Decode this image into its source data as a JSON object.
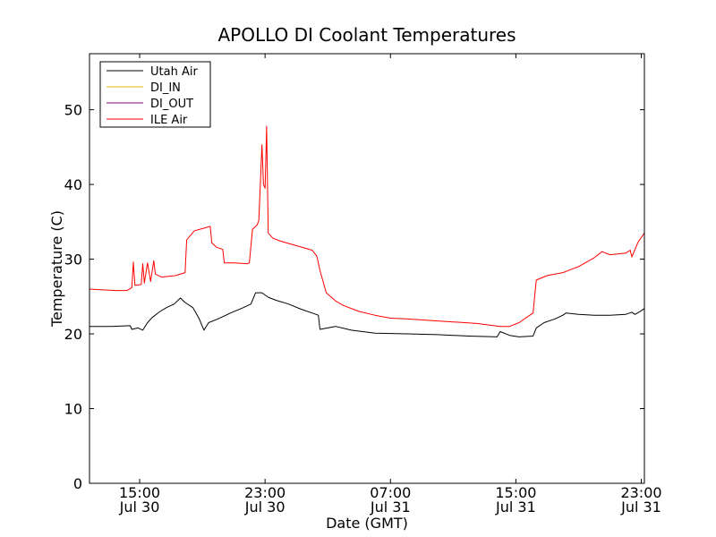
{
  "chart_data": {
    "type": "line",
    "title": "APOLLO DI Coolant Temperatures",
    "xlabel": "Date (GMT)",
    "ylabel": "Temperature (C)",
    "xlim_hours": [
      11.8,
      47.2
    ],
    "ylim": [
      0,
      57.5
    ],
    "grid": false,
    "legend_position": "top-left",
    "x_ticks": [
      {
        "hour": 15,
        "time": "15:00",
        "date": "Jul 30"
      },
      {
        "hour": 23,
        "time": "23:00",
        "date": "Jul 30"
      },
      {
        "hour": 31,
        "time": "07:00",
        "date": "Jul 31"
      },
      {
        "hour": 39,
        "time": "15:00",
        "date": "Jul 31"
      },
      {
        "hour": 47,
        "time": "23:00",
        "date": "Jul 31"
      }
    ],
    "y_ticks": [
      0,
      10,
      20,
      30,
      40,
      50
    ],
    "series": [
      {
        "name": "Utah Air",
        "color": "#000000",
        "points": [
          [
            11.8,
            21.0
          ],
          [
            13.2,
            21.0
          ],
          [
            14.4,
            21.1
          ],
          [
            14.5,
            20.6
          ],
          [
            14.9,
            20.8
          ],
          [
            15.2,
            20.5
          ],
          [
            15.5,
            21.5
          ],
          [
            15.8,
            22.2
          ],
          [
            16.3,
            23.0
          ],
          [
            16.7,
            23.5
          ],
          [
            17.2,
            24.0
          ],
          [
            17.6,
            24.8
          ],
          [
            17.9,
            24.2
          ],
          [
            18.4,
            23.5
          ],
          [
            18.8,
            22.0
          ],
          [
            19.1,
            20.5
          ],
          [
            19.4,
            21.5
          ],
          [
            20.0,
            22.0
          ],
          [
            20.8,
            22.8
          ],
          [
            21.6,
            23.5
          ],
          [
            22.1,
            24.0
          ],
          [
            22.4,
            25.5
          ],
          [
            22.8,
            25.5
          ],
          [
            23.2,
            24.9
          ],
          [
            23.7,
            24.5
          ],
          [
            24.5,
            24.0
          ],
          [
            25.3,
            23.3
          ],
          [
            26.0,
            22.8
          ],
          [
            26.4,
            22.5
          ],
          [
            26.5,
            20.6
          ],
          [
            27.0,
            20.8
          ],
          [
            27.5,
            21.0
          ],
          [
            28.5,
            20.5
          ],
          [
            30.0,
            20.1
          ],
          [
            32.0,
            20.0
          ],
          [
            34.0,
            19.9
          ],
          [
            36.0,
            19.7
          ],
          [
            37.8,
            19.6
          ],
          [
            38.0,
            20.3
          ],
          [
            38.6,
            19.8
          ],
          [
            39.2,
            19.6
          ],
          [
            40.1,
            19.7
          ],
          [
            40.3,
            20.8
          ],
          [
            40.8,
            21.5
          ],
          [
            41.5,
            22.0
          ],
          [
            42.0,
            22.5
          ],
          [
            42.2,
            22.8
          ],
          [
            43.0,
            22.6
          ],
          [
            44.0,
            22.5
          ],
          [
            45.0,
            22.5
          ],
          [
            46.0,
            22.6
          ],
          [
            46.4,
            22.9
          ],
          [
            46.6,
            22.6
          ],
          [
            47.0,
            23.1
          ],
          [
            47.2,
            23.4
          ]
        ]
      },
      {
        "name": "DI_IN",
        "color": "#e8b400",
        "points": []
      },
      {
        "name": "DI_OUT",
        "color": "#800080",
        "points": []
      },
      {
        "name": "ILE Air",
        "color": "#ff0000",
        "points": [
          [
            11.8,
            26.0
          ],
          [
            12.5,
            25.9
          ],
          [
            13.5,
            25.8
          ],
          [
            14.2,
            25.8
          ],
          [
            14.5,
            26.2
          ],
          [
            14.6,
            29.6
          ],
          [
            14.7,
            26.5
          ],
          [
            15.1,
            26.6
          ],
          [
            15.2,
            29.4
          ],
          [
            15.3,
            26.8
          ],
          [
            15.5,
            29.5
          ],
          [
            15.7,
            27.0
          ],
          [
            15.9,
            29.8
          ],
          [
            16.0,
            28.0
          ],
          [
            16.4,
            27.6
          ],
          [
            17.3,
            27.8
          ],
          [
            17.9,
            28.2
          ],
          [
            18.0,
            32.6
          ],
          [
            18.5,
            33.8
          ],
          [
            19.2,
            34.2
          ],
          [
            19.5,
            34.4
          ],
          [
            19.6,
            32.2
          ],
          [
            19.9,
            31.6
          ],
          [
            20.3,
            31.3
          ],
          [
            20.4,
            29.5
          ],
          [
            21.0,
            29.5
          ],
          [
            21.9,
            29.4
          ],
          [
            22.0,
            29.5
          ],
          [
            22.2,
            34.0
          ],
          [
            22.5,
            34.6
          ],
          [
            22.6,
            35.2
          ],
          [
            22.8,
            45.3
          ],
          [
            22.9,
            40.0
          ],
          [
            23.0,
            39.5
          ],
          [
            23.1,
            47.8
          ],
          [
            23.2,
            33.5
          ],
          [
            23.5,
            32.8
          ],
          [
            24.0,
            32.4
          ],
          [
            25.0,
            31.8
          ],
          [
            26.0,
            31.2
          ],
          [
            26.3,
            30.4
          ],
          [
            26.5,
            28.5
          ],
          [
            26.9,
            25.5
          ],
          [
            27.5,
            24.4
          ],
          [
            28.0,
            23.8
          ],
          [
            29.0,
            23.0
          ],
          [
            30.0,
            22.5
          ],
          [
            31.0,
            22.1
          ],
          [
            32.0,
            22.0
          ],
          [
            33.5,
            21.8
          ],
          [
            35.0,
            21.6
          ],
          [
            36.5,
            21.4
          ],
          [
            38.0,
            21.0
          ],
          [
            38.6,
            21.0
          ],
          [
            39.2,
            21.5
          ],
          [
            40.1,
            22.8
          ],
          [
            40.3,
            27.2
          ],
          [
            41.0,
            27.8
          ],
          [
            42.0,
            28.2
          ],
          [
            43.0,
            29.0
          ],
          [
            44.0,
            30.2
          ],
          [
            44.5,
            31.0
          ],
          [
            45.0,
            30.6
          ],
          [
            46.0,
            30.8
          ],
          [
            46.3,
            31.2
          ],
          [
            46.4,
            30.3
          ],
          [
            46.8,
            32.3
          ],
          [
            47.2,
            33.5
          ]
        ]
      }
    ]
  }
}
